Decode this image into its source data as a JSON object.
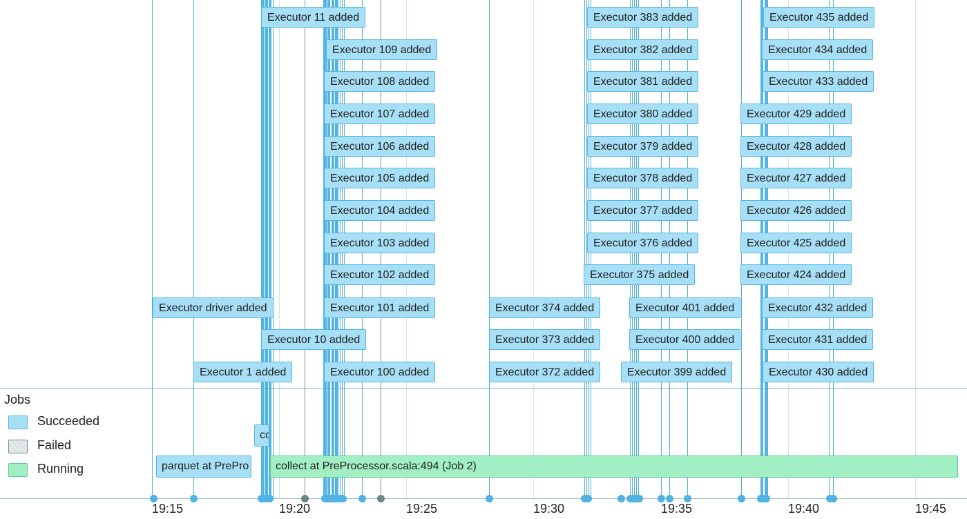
{
  "legend": {
    "title": "Jobs",
    "items": [
      {
        "label": "Succeeded",
        "color": "#a6dff6",
        "border": "#55b6e4"
      },
      {
        "label": "Failed",
        "color": "#e3e8e8",
        "border": "#7a8a8a"
      },
      {
        "label": "Running",
        "color": "#a3efc4",
        "border": "#5fcc8f"
      }
    ]
  },
  "axis": {
    "ticks": [
      "19:15",
      "19:20",
      "19:25",
      "19:30",
      "19:35",
      "19:40",
      "19:45"
    ]
  },
  "executors": [
    {
      "label": "Executor 11 added",
      "time": "19:19:00"
    },
    {
      "label": "Executor 383 added",
      "time": "19:32:20"
    },
    {
      "label": "Executor 435 added",
      "time": "19:39:10"
    },
    {
      "label": "Executor 109 added",
      "time": "19:21:20"
    },
    {
      "label": "Executor 382 added",
      "time": "19:32:20"
    },
    {
      "label": "Executor 434 added",
      "time": "19:38:10"
    },
    {
      "label": "Executor 108 added",
      "time": "19:21:10"
    },
    {
      "label": "Executor 381 added",
      "time": "19:32:20"
    },
    {
      "label": "Executor 433 added",
      "time": "19:38:10"
    },
    {
      "label": "Executor 107 added",
      "time": "19:21:10"
    },
    {
      "label": "Executor 380 added",
      "time": "19:32:20"
    },
    {
      "label": "Executor 429 added",
      "time": "19:37:20"
    },
    {
      "label": "Executor 106 added",
      "time": "19:21:10"
    },
    {
      "label": "Executor 379 added",
      "time": "19:32:20"
    },
    {
      "label": "Executor 428 added",
      "time": "19:37:20"
    },
    {
      "label": "Executor 105 added",
      "time": "19:21:10"
    },
    {
      "label": "Executor 378 added",
      "time": "19:32:20"
    },
    {
      "label": "Executor 427 added",
      "time": "19:37:20"
    },
    {
      "label": "Executor 104 added",
      "time": "19:21:10"
    },
    {
      "label": "Executor 377 added",
      "time": "19:32:20"
    },
    {
      "label": "Executor 426 added",
      "time": "19:37:20"
    },
    {
      "label": "Executor 103 added",
      "time": "19:21:10"
    },
    {
      "label": "Executor 376 added",
      "time": "19:32:20"
    },
    {
      "label": "Executor 425 added",
      "time": "19:37:20"
    },
    {
      "label": "Executor 102 added",
      "time": "19:21:10"
    },
    {
      "label": "Executor 375 added",
      "time": "19:32:10"
    },
    {
      "label": "Executor 424 added",
      "time": "19:37:20"
    },
    {
      "label": "Executor driver added",
      "time": "19:15:00"
    },
    {
      "label": "Executor 101 added",
      "time": "19:21:10"
    },
    {
      "label": "Executor 374 added",
      "time": "19:27:50"
    },
    {
      "label": "Executor 401 added",
      "time": "19:33:20"
    },
    {
      "label": "Executor 432 added",
      "time": "19:38:10"
    },
    {
      "label": "Executor 10 added",
      "time": "19:19:00"
    },
    {
      "label": "Executor 373 added",
      "time": "19:27:50"
    },
    {
      "label": "Executor 400 added",
      "time": "19:33:20"
    },
    {
      "label": "Executor 431 added",
      "time": "19:38:10"
    },
    {
      "label": "Executor 1 added",
      "time": "19:16:40"
    },
    {
      "label": "Executor 100 added",
      "time": "19:21:10"
    },
    {
      "label": "Executor 372 added",
      "time": "19:27:50"
    },
    {
      "label": "Executor 399 added",
      "time": "19:33:00"
    },
    {
      "label": "Executor 430 added",
      "time": "19:38:10"
    }
  ],
  "jobs": [
    {
      "label": "parquet at PrePro",
      "status": "Succeeded"
    },
    {
      "label": "co",
      "status": "Succeeded"
    },
    {
      "label": "collect at PreProcessor.scala:494 (Job 2)",
      "status": "Running"
    }
  ]
}
